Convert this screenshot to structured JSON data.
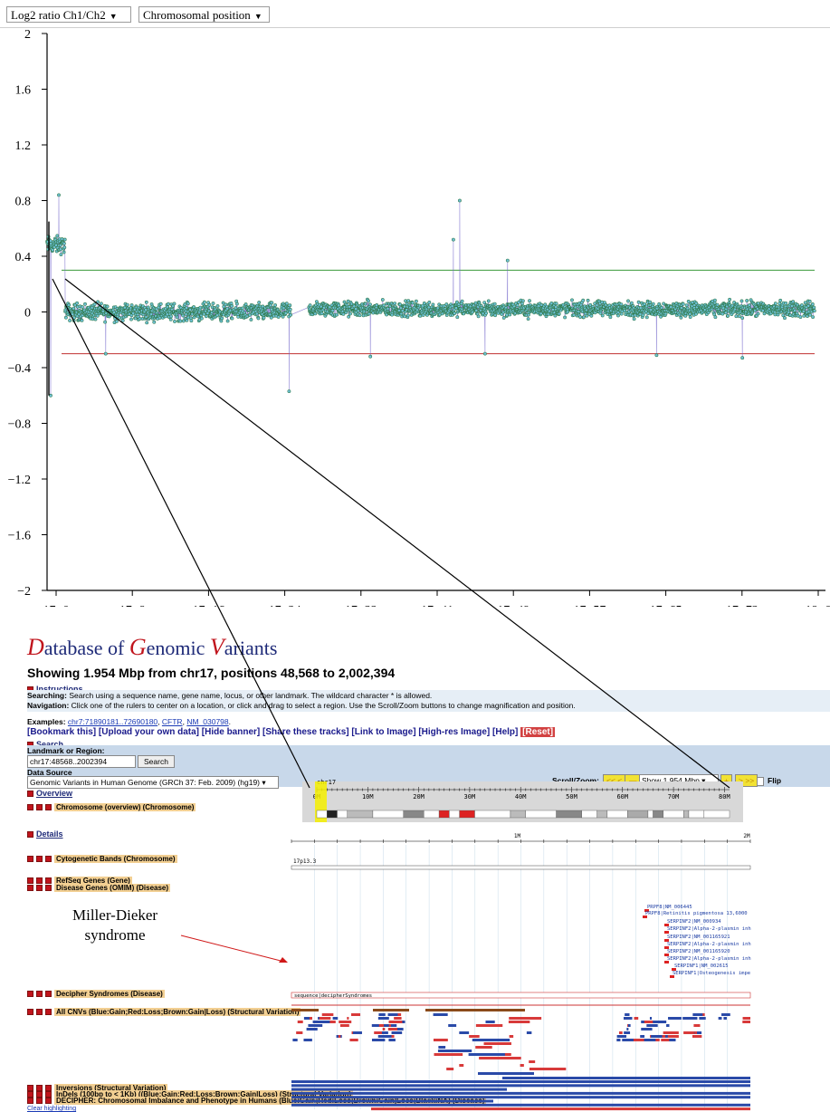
{
  "toolbar": {
    "measure_label": "Log2 ratio Ch1/Ch2",
    "axis_label": "Chromosomal position"
  },
  "chart_data": {
    "type": "scatter",
    "y_ticks": [
      "2",
      "1.6",
      "1.2",
      "0.8",
      "0.4",
      "0",
      "−0.4",
      "−0.8",
      "−1.2",
      "−1.6",
      "−2"
    ],
    "x_ticks": [
      "17−0",
      "17−8",
      "17−16",
      "17−24",
      "17−32",
      "17−41",
      "17−49",
      "17−57",
      "17−65",
      "17−73",
      "18−0"
    ],
    "ylim": [
      -2,
      2
    ],
    "thresholds": [
      {
        "value": 0.3,
        "color": "#3a9a3a"
      },
      {
        "value": -0.3,
        "color": "#c03030"
      }
    ],
    "series_color": "#6f63c9",
    "point_color": "#2f7a4a",
    "segments": [
      {
        "x_start": 0.0,
        "x_end": 2.0,
        "mean": 0.48,
        "spread": 0.09
      },
      {
        "x_start": 2.0,
        "x_end": 27.0,
        "mean": 0.0,
        "spread": 0.09
      },
      {
        "x_start": 29.0,
        "x_end": 85.0,
        "mean": 0.02,
        "spread": 0.08
      }
    ],
    "outliers": [
      {
        "x": 0.4,
        "y": -0.6
      },
      {
        "x": 1.3,
        "y": 0.84
      },
      {
        "x": 6.5,
        "y": -0.3
      },
      {
        "x": 26.8,
        "y": -0.57
      },
      {
        "x": 45.0,
        "y": 0.52
      },
      {
        "x": 45.7,
        "y": 0.8
      },
      {
        "x": 48.5,
        "y": -0.3
      },
      {
        "x": 51.0,
        "y": 0.37
      },
      {
        "x": 35.8,
        "y": -0.32
      },
      {
        "x": 67.5,
        "y": -0.31
      },
      {
        "x": 77.0,
        "y": -0.33
      }
    ]
  },
  "browser": {
    "title_parts": [
      "D",
      "atabase of ",
      "G",
      "enomic ",
      "V",
      "ariants"
    ],
    "showing": "Showing 1.954 Mbp from chr17, positions 48,568 to 2,002,394",
    "instructions_label": "Instructions",
    "searching_label": "Searching:",
    "searching_text": "Search using a sequence name, gene name, locus, or other landmark. The wildcard character * is allowed.",
    "navigation_label": "Navigation:",
    "navigation_text": "Click one of the rulers to center on a location, or click and drag to select a region. Use the Scroll/Zoom buttons to change magnification and position.",
    "examples_label": "Examples:",
    "example_links": [
      "chr7:71890181..72690180",
      "CFTR",
      "NM_030798"
    ],
    "links": [
      "[Bookmark this]",
      "[Upload your own data]",
      "[Hide banner]",
      "[Share these tracks]",
      "[Link to Image]",
      "[High-res Image]",
      "[Help]",
      "[Reset]"
    ],
    "search_section": "Search",
    "landmark_label": "Landmark or Region:",
    "landmark_value": "chr17:48568..2002394",
    "search_button": "Search",
    "data_source_label": "Data Source",
    "data_source_value": "Genomic Variants in Human Genome (GRCh 37: Feb. 2009) (hg19)",
    "scroll_zoom_label": "Scroll/Zoom:",
    "show_value": "Show 1.954 Mbp",
    "flip_label": "Flip",
    "overview_section": "Overview",
    "details_section": "Details",
    "chrom_label": "chr17",
    "ideo_ticks": [
      "0M",
      "10M",
      "20M",
      "30M",
      "40M",
      "50M",
      "60M",
      "70M",
      "80M"
    ],
    "detail_ticks": [
      "1M",
      "2M"
    ],
    "band_label": "17p13.3",
    "tracks": [
      "Chromosome (overview) (Chromosome)",
      "Cytogenetic Bands (Chromosome)",
      "RefSeq Genes (Gene)",
      "Disease Genes (OMIM) (Disease)",
      "Decipher Syndromes (Disease)",
      "All CNVs (Blue:Gain;Red:Loss;Brown:Gain|Loss) (Structural Variation)",
      "Inversions (Structural Variation)",
      "InDels (100bp to < 1Kb) ((Blue:Gain;Red:Loss;Brown:Gain|Loss) (Structural Variation)",
      "DECIPHER: Chromosomal Imbalance and Phenotype in Humans (Blue:Gain;Red:Loss;Brown:Gain|Loss;Black:NA) (Disease)"
    ],
    "gene_labels": [
      "PRPF8|NM_006445",
      "PRPF8|Retinitis pigmentosa 13,6000",
      "SERPINF2|NM_000934",
      "SERPINF2|Alpha-2-plasmin inh",
      "SERPINF2|NM_001165921",
      "SERPINF2|Alpha-2-plasmin inh",
      "SERPINF2|NM_001165920",
      "SERPINF2|Alpha-2-plasmin inh",
      "SERPINF1|NM_002615",
      "SERPINF1|Osteogenesis impe"
    ],
    "decipher_label": "sequence|decipherSyndromes",
    "clear_highlighting": "Clear highlighting"
  },
  "annotation": {
    "line1": "Miller-Dieker",
    "line2": "syndrome"
  }
}
